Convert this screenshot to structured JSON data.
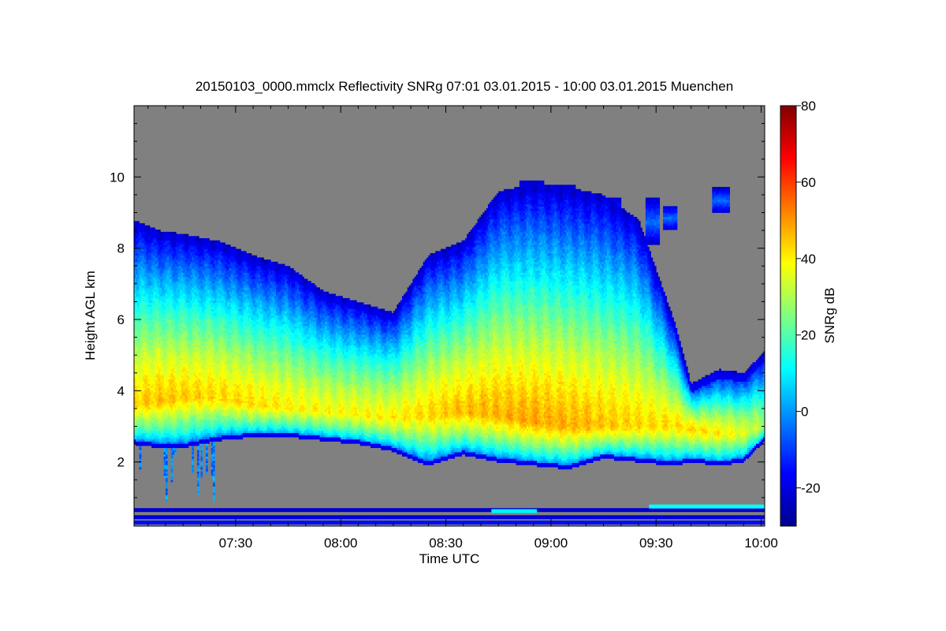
{
  "chart_data": {
    "type": "heatmap",
    "title": "20150103_0000.mmclx Reflectivity SNRg   07:01 03.01.2015 - 10:00 03.01.2015 Muenchen",
    "xlabel": "Time UTC",
    "ylabel": "Height AGL km",
    "x_range_minutes_utc": [
      421,
      601
    ],
    "y_range_km": [
      0.2,
      12
    ],
    "x_ticks": [
      {
        "label": "07:30",
        "minute": 450
      },
      {
        "label": "08:00",
        "minute": 480
      },
      {
        "label": "08:30",
        "minute": 510
      },
      {
        "label": "09:00",
        "minute": 540
      },
      {
        "label": "09:30",
        "minute": 570
      },
      {
        "label": "10:00",
        "minute": 600
      }
    ],
    "y_ticks": [
      2,
      4,
      6,
      8,
      10
    ],
    "colorbar": {
      "label": "SNRg dB",
      "range": [
        -30,
        80
      ],
      "ticks": [
        -20,
        0,
        20,
        40,
        60,
        80
      ],
      "colormap": "jet"
    },
    "background_color": "#808080",
    "signal_profile": {
      "description_units": "minute UTC, km, dB",
      "columns": [
        {
          "t": 421,
          "base": 2.5,
          "top": 8.8,
          "peak_h": 3.6,
          "peak": 44
        },
        {
          "t": 428,
          "base": 2.4,
          "top": 8.5,
          "peak_h": 3.7,
          "peak": 45
        },
        {
          "t": 435,
          "base": 2.4,
          "top": 8.4,
          "peak_h": 3.8,
          "peak": 44
        },
        {
          "t": 445,
          "base": 2.6,
          "top": 8.2,
          "peak_h": 3.8,
          "peak": 43
        },
        {
          "t": 455,
          "base": 2.7,
          "top": 7.8,
          "peak_h": 3.6,
          "peak": 42
        },
        {
          "t": 465,
          "base": 2.7,
          "top": 7.5,
          "peak_h": 3.5,
          "peak": 40
        },
        {
          "t": 475,
          "base": 2.6,
          "top": 6.8,
          "peak_h": 3.4,
          "peak": 39
        },
        {
          "t": 485,
          "base": 2.5,
          "top": 6.5,
          "peak_h": 3.3,
          "peak": 39
        },
        {
          "t": 495,
          "base": 2.3,
          "top": 6.2,
          "peak_h": 3.2,
          "peak": 40
        },
        {
          "t": 505,
          "base": 1.9,
          "top": 7.8,
          "peak_h": 3.3,
          "peak": 43
        },
        {
          "t": 515,
          "base": 2.2,
          "top": 8.2,
          "peak_h": 3.4,
          "peak": 46
        },
        {
          "t": 525,
          "base": 2.0,
          "top": 9.6,
          "peak_h": 3.3,
          "peak": 47
        },
        {
          "t": 535,
          "base": 1.9,
          "top": 9.8,
          "peak_h": 3.1,
          "peak": 48
        },
        {
          "t": 545,
          "base": 1.8,
          "top": 9.7,
          "peak_h": 3.0,
          "peak": 47
        },
        {
          "t": 555,
          "base": 2.1,
          "top": 9.5,
          "peak_h": 3.0,
          "peak": 45
        },
        {
          "t": 565,
          "base": 2.0,
          "top": 8.8,
          "peak_h": 3.0,
          "peak": 43
        },
        {
          "t": 575,
          "base": 1.9,
          "top": 6.0,
          "peak_h": 3.0,
          "peak": 42
        },
        {
          "t": 580,
          "base": 2.0,
          "top": 4.2,
          "peak_h": 2.9,
          "peak": 43
        },
        {
          "t": 588,
          "base": 1.9,
          "top": 4.6,
          "peak_h": 2.8,
          "peak": 40
        },
        {
          "t": 595,
          "base": 2.0,
          "top": 4.5,
          "peak_h": 2.8,
          "peak": 36
        },
        {
          "t": 601,
          "base": 2.6,
          "top": 5.1,
          "peak_h": 3.0,
          "peak": 30
        }
      ]
    },
    "upper_cells": [
      {
        "t0": 521,
        "t1": 526,
        "base": 8.3,
        "top": 8.9
      },
      {
        "t0": 531,
        "t1": 538,
        "base": 8.7,
        "top": 9.9
      },
      {
        "t0": 538,
        "t1": 547,
        "base": 8.4,
        "top": 9.8
      },
      {
        "t0": 555,
        "t1": 560,
        "base": 8.4,
        "top": 9.4
      },
      {
        "t0": 567,
        "t1": 571,
        "base": 8.1,
        "top": 9.4
      },
      {
        "t0": 572,
        "t1": 576,
        "base": 8.5,
        "top": 9.2
      },
      {
        "t0": 586,
        "t1": 591,
        "base": 9.0,
        "top": 9.7
      }
    ],
    "near_ground_bands": [
      {
        "t0": 421,
        "t1": 601,
        "h": 0.3,
        "value": -15
      },
      {
        "t0": 421,
        "t1": 601,
        "h": 0.45,
        "value": -20
      },
      {
        "t0": 421,
        "t1": 601,
        "h": 0.65,
        "value": -22
      },
      {
        "t0": 523,
        "t1": 536,
        "h": 0.62,
        "value": 10
      },
      {
        "t0": 568,
        "t1": 601,
        "h": 0.75,
        "value": 12
      }
    ]
  }
}
